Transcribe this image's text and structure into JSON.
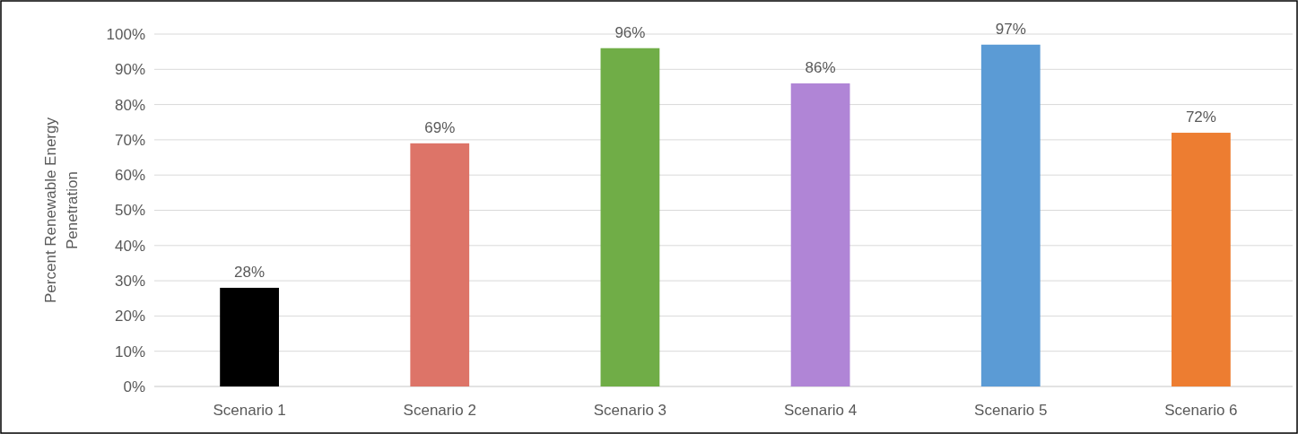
{
  "chart_data": {
    "type": "bar",
    "ylabel": "Percent Renewable Energy Penetration",
    "categories": [
      "Scenario 1",
      "Scenario 2",
      "Scenario 3",
      "Scenario 4",
      "Scenario 5",
      "Scenario 6"
    ],
    "values": [
      28,
      69,
      96,
      86,
      97,
      72
    ],
    "colors": [
      "#000000",
      "#dd7468",
      "#70ad47",
      "#b085d6",
      "#5b9bd5",
      "#ed7d31"
    ],
    "value_labels": [
      "28%",
      "69%",
      "96%",
      "86%",
      "97%",
      "72%"
    ],
    "ylim": [
      0,
      100
    ],
    "yticks": [
      {
        "value": 0,
        "label": "0%"
      },
      {
        "value": 10,
        "label": "10%"
      },
      {
        "value": 20,
        "label": "20%"
      },
      {
        "value": 30,
        "label": "30%"
      },
      {
        "value": 40,
        "label": "40%"
      },
      {
        "value": 50,
        "label": "50%"
      },
      {
        "value": 60,
        "label": "60%"
      },
      {
        "value": 70,
        "label": "70%"
      },
      {
        "value": 80,
        "label": "80%"
      },
      {
        "value": 90,
        "label": "90%"
      },
      {
        "value": 100,
        "label": "100%"
      }
    ],
    "grid": "y"
  }
}
